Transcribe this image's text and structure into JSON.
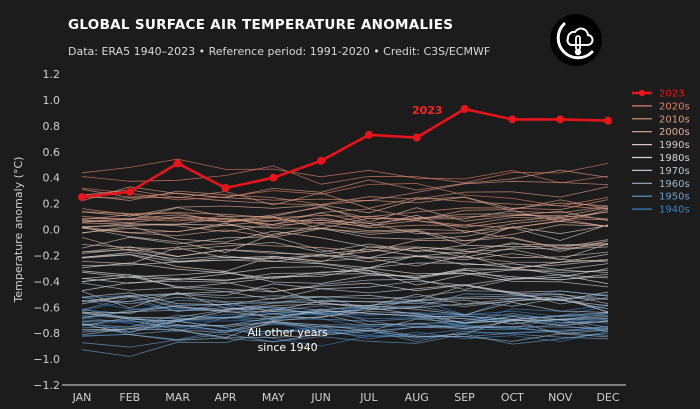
{
  "header": {
    "title": "GLOBAL SURFACE AIR TEMPERATURE ANOMALIES",
    "subtitle": "Data: ERA5 1940–2023 • Reference period: 1991-2020 • Credit: C3S/ECMWF"
  },
  "logo": {
    "icon": "c3s-thermometer-moon-icon"
  },
  "colors": {
    "background": "#1c1c1c",
    "highlight": "#e8131b",
    "ramp_warm": "#e8896a",
    "ramp_mid": "#d0d0d0",
    "ramp_cool": "#3a8fd0"
  },
  "chart_data": {
    "type": "line",
    "title": "GLOBAL SURFACE AIR TEMPERATURE ANOMALIES",
    "ylabel": "Temperature anomaly (°C)",
    "xlabel": "",
    "categories": [
      "JAN",
      "FEB",
      "MAR",
      "APR",
      "MAY",
      "JUN",
      "JUL",
      "AUG",
      "SEP",
      "OCT",
      "NOV",
      "DEC"
    ],
    "ylim": [
      -1.2,
      1.2
    ],
    "yticks": [
      "1.2",
      "1.0",
      "0.8",
      "0.6",
      "0.4",
      "0.2",
      "0.0",
      "−0.2",
      "−0.4",
      "−0.6",
      "−0.8",
      "−1.0",
      "−1.2"
    ],
    "ytick_values": [
      1.2,
      1.0,
      0.8,
      0.6,
      0.4,
      0.2,
      0.0,
      -0.2,
      -0.4,
      -0.6,
      -0.8,
      -1.0,
      -1.2
    ],
    "grid": false,
    "legend_position": "right",
    "highlight_series": {
      "name": "2023",
      "color": "#e8131b",
      "values": [
        0.25,
        0.29,
        0.51,
        0.32,
        0.4,
        0.53,
        0.73,
        0.71,
        0.93,
        0.85,
        0.85,
        0.84
      ]
    },
    "legend": [
      {
        "label": "2023",
        "color": "#e8131b"
      },
      {
        "label": "2020s",
        "color": "#e0806a"
      },
      {
        "label": "2010s",
        "color": "#dd9a80"
      },
      {
        "label": "2000s",
        "color": "#dcb09e"
      },
      {
        "label": "1990s",
        "color": "#d8c6bc"
      },
      {
        "label": "1980s",
        "color": "#d6d6d6"
      },
      {
        "label": "1970s",
        "color": "#bcc6cf"
      },
      {
        "label": "1960s",
        "color": "#9cb4c8"
      },
      {
        "label": "1950s",
        "color": "#6e9fc8"
      },
      {
        "label": "1940s",
        "color": "#3c82c4"
      }
    ],
    "decade_profiles": [
      {
        "decade": "1940s",
        "years": 10,
        "base": -0.7,
        "spread": 0.14
      },
      {
        "decade": "1950s",
        "years": 10,
        "base": -0.74,
        "spread": 0.13
      },
      {
        "decade": "1960s",
        "years": 10,
        "base": -0.68,
        "spread": 0.13
      },
      {
        "decade": "1970s",
        "years": 10,
        "base": -0.56,
        "spread": 0.14
      },
      {
        "decade": "1980s",
        "years": 10,
        "base": -0.36,
        "spread": 0.14
      },
      {
        "decade": "1990s",
        "years": 10,
        "base": -0.16,
        "spread": 0.14
      },
      {
        "decade": "2000s",
        "years": 10,
        "base": 0.02,
        "spread": 0.12
      },
      {
        "decade": "2010s",
        "years": 10,
        "base": 0.18,
        "spread": 0.15
      },
      {
        "decade": "2020s",
        "years": 3,
        "base": 0.33,
        "spread": 0.12
      }
    ],
    "annotations": {
      "highlight_label": "2023",
      "other_years_line1": "All other years",
      "other_years_line2": "since 1940"
    }
  }
}
